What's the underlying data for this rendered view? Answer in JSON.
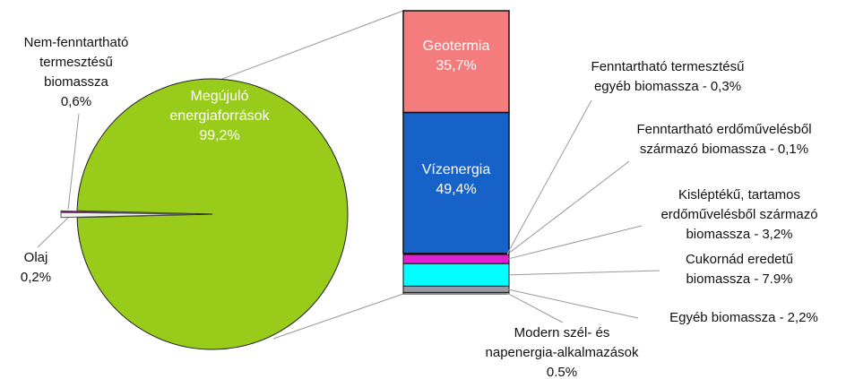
{
  "chart_data": [
    {
      "type": "pie",
      "categories": [
        [
          "Megújuló",
          "energiaforrások"
        ],
        [
          "Nem-fenntartható",
          "termesztésű",
          "biomassza"
        ],
        [
          "Olaj"
        ]
      ],
      "values": [
        99.2,
        0.6,
        0.2
      ],
      "value_labels": [
        "99,2%",
        "0,6%",
        "0,2%"
      ],
      "colors": [
        "#99cc1a",
        "#f4f4ec",
        "#6a0a6e"
      ]
    },
    {
      "type": "stacked_bar",
      "series": [
        {
          "name": [
            "Geotermia"
          ],
          "color": "#f47c7c",
          "values": [
            35.7
          ],
          "value_labels": [
            "35,7%"
          ]
        },
        {
          "name": [
            "Vízenergia"
          ],
          "color": "#1662c8",
          "values": [
            49.4
          ],
          "value_labels": [
            "49,4%"
          ]
        },
        {
          "name": [
            "Fenntartható termesztésű",
            "egyéb biomassza -"
          ],
          "color": "#7a1fa0",
          "values": [
            0.3
          ],
          "value_labels": [
            "0,3%"
          ]
        },
        {
          "name": [
            "Fenntartható erdőművelésből",
            "származó biomassza -"
          ],
          "color": "#303030",
          "values": [
            0.1
          ],
          "value_labels": [
            "0,1%"
          ]
        },
        {
          "name": [
            "Kisléptékű, tartamos",
            "erdőművelésből származó",
            "biomassza -"
          ],
          "color": "#e01ed2",
          "values": [
            3.2
          ],
          "value_labels": [
            "3,2%"
          ]
        },
        {
          "name": [
            "Cukornád eredetű",
            "biomassza -"
          ],
          "color": "#00ffff",
          "values": [
            7.9
          ],
          "value_labels": [
            "7.9%"
          ]
        },
        {
          "name": [
            "Egyéb biomassza -"
          ],
          "color": "#9a9aa6",
          "values": [
            2.2
          ],
          "value_labels": [
            "2,2%"
          ]
        },
        {
          "name": [
            "Modern szél- és",
            "napenergia-alkalmazások"
          ],
          "color": "#ffffff",
          "values": [
            0.5
          ],
          "value_labels": [
            "0.5%"
          ]
        }
      ]
    }
  ]
}
